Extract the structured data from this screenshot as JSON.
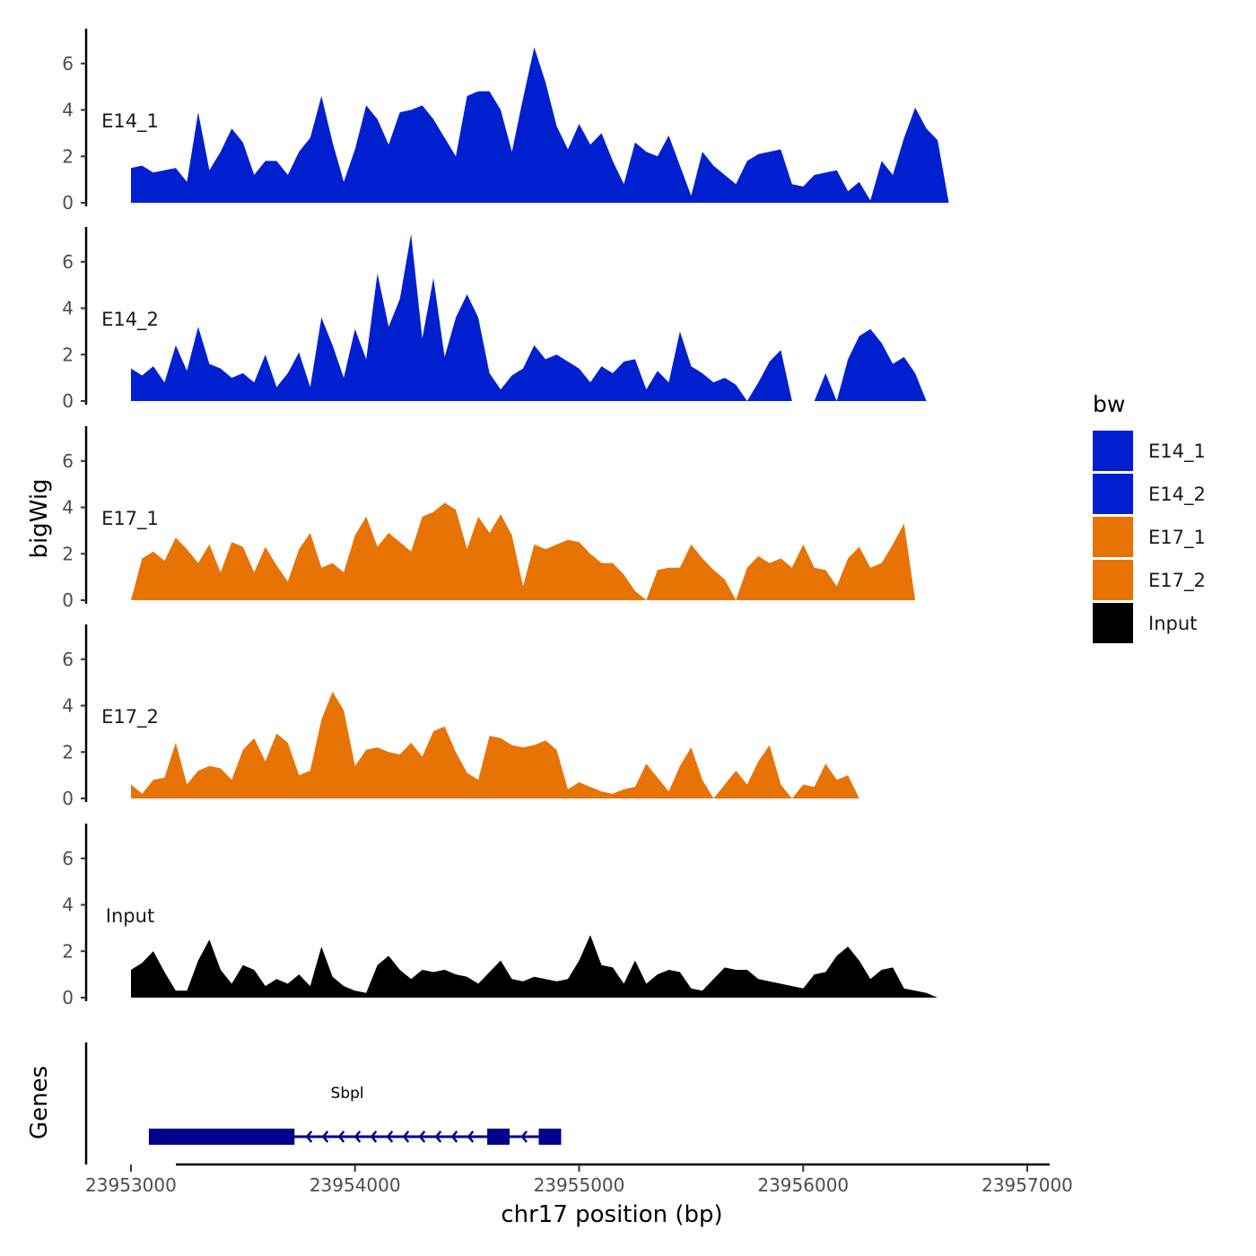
{
  "chart_data": {
    "type": "area",
    "chromosome": "chr17",
    "xlabel": "chr17 position (bp)",
    "ylabel": "bigWig",
    "genes_label": "Genes",
    "xlim": [
      23952800,
      23957100
    ],
    "x_ticks": [
      23953000,
      23954000,
      23955000,
      23956000,
      23957000
    ],
    "x_tick_labels": [
      "23953000",
      "23954000",
      "23955000",
      "23956000",
      "23957000"
    ],
    "ylim": [
      0,
      7.5
    ],
    "y_ticks": [
      0,
      2,
      4,
      6
    ],
    "y_tick_labels": [
      "0",
      "2",
      "4",
      "6"
    ],
    "legend": {
      "title": "bw",
      "entries": [
        {
          "label": "E14_1",
          "color": "#0020d0"
        },
        {
          "label": "E14_2",
          "color": "#0020d0"
        },
        {
          "label": "E17_1",
          "color": "#e87305"
        },
        {
          "label": "E17_2",
          "color": "#e87305"
        },
        {
          "label": "Input",
          "color": "#000000"
        }
      ]
    },
    "series": [
      {
        "name": "E14_1",
        "color": "#0020d0",
        "x": [
          23953000,
          23953050,
          23953100,
          23953150,
          23953200,
          23953250,
          23953300,
          23953350,
          23953400,
          23953450,
          23953500,
          23953550,
          23953600,
          23953650,
          23953700,
          23953750,
          23953800,
          23953850,
          23953900,
          23953950,
          23954000,
          23954050,
          23954100,
          23954150,
          23954200,
          23954250,
          23954300,
          23954350,
          23954400,
          23954450,
          23954500,
          23954550,
          23954600,
          23954650,
          23954700,
          23954750,
          23954800,
          23954850,
          23954900,
          23954950,
          23955000,
          23955050,
          23955100,
          23955150,
          23955200,
          23955250,
          23955300,
          23955350,
          23955400,
          23955450,
          23955500,
          23955550,
          23955600,
          23955650,
          23955700,
          23955750,
          23955800,
          23955850,
          23955900,
          23955950,
          23956000,
          23956050,
          23956100,
          23956150,
          23956200,
          23956250,
          23956300,
          23956350,
          23956400,
          23956450,
          23956500,
          23956550,
          23956600,
          23956650,
          23956700,
          23956750,
          23956800
        ],
        "y": [
          1.5,
          1.6,
          1.3,
          1.4,
          1.5,
          0.9,
          3.9,
          1.4,
          2.2,
          3.2,
          2.6,
          1.2,
          1.8,
          1.8,
          1.2,
          2.2,
          2.8,
          4.6,
          2.6,
          0.9,
          2.3,
          4.2,
          3.6,
          2.5,
          3.9,
          4.0,
          4.2,
          3.6,
          2.8,
          2.0,
          4.6,
          4.8,
          4.8,
          4.0,
          2.2,
          4.5,
          6.7,
          5.2,
          3.3,
          2.3,
          3.4,
          2.5,
          3.0,
          1.8,
          0.8,
          2.6,
          2.2,
          2.0,
          2.9,
          1.6,
          0.3,
          2.2,
          1.6,
          1.2,
          0.8,
          1.8,
          2.1,
          2.2,
          2.3,
          0.8,
          0.7,
          1.2,
          1.3,
          1.4,
          0.5,
          0.9,
          0.1,
          1.8,
          1.2,
          2.8,
          4.1,
          3.2,
          2.7,
          0.0,
          0.0,
          0.0,
          0.0
        ]
      },
      {
        "name": "E14_2",
        "color": "#0020d0",
        "x": [
          23953000,
          23953050,
          23953100,
          23953150,
          23953200,
          23953250,
          23953300,
          23953350,
          23953400,
          23953450,
          23953500,
          23953550,
          23953600,
          23953650,
          23953700,
          23953750,
          23953800,
          23953850,
          23953900,
          23953950,
          23954000,
          23954050,
          23954100,
          23954150,
          23954200,
          23954250,
          23954300,
          23954350,
          23954400,
          23954450,
          23954500,
          23954550,
          23954600,
          23954650,
          23954700,
          23954750,
          23954800,
          23954850,
          23954900,
          23954950,
          23955000,
          23955050,
          23955100,
          23955150,
          23955200,
          23955250,
          23955300,
          23955350,
          23955400,
          23955450,
          23955500,
          23955550,
          23955600,
          23955650,
          23955700,
          23955750,
          23955800,
          23955850,
          23955900,
          23955950,
          23956000,
          23956050,
          23956100,
          23956150,
          23956200,
          23956250,
          23956300,
          23956350,
          23956400,
          23956450,
          23956500,
          23956550,
          23956600,
          23956650,
          23956700,
          23956750,
          23956800
        ],
        "y": [
          1.4,
          1.1,
          1.5,
          0.8,
          2.4,
          1.3,
          3.2,
          1.6,
          1.4,
          1.0,
          1.2,
          0.8,
          2.0,
          0.6,
          1.2,
          2.1,
          0.6,
          3.6,
          2.4,
          1.0,
          3.1,
          1.8,
          5.5,
          3.2,
          4.4,
          7.2,
          2.7,
          5.3,
          1.9,
          3.6,
          4.6,
          3.6,
          1.2,
          0.5,
          1.1,
          1.4,
          2.4,
          1.8,
          2.0,
          1.7,
          1.4,
          0.8,
          1.5,
          1.2,
          1.7,
          1.8,
          0.5,
          1.3,
          0.8,
          3.0,
          1.5,
          1.2,
          0.8,
          1.0,
          0.7,
          0.0,
          0.8,
          1.7,
          2.2,
          0.0,
          0.0,
          0.0,
          1.2,
          0.0,
          1.8,
          2.8,
          3.1,
          2.5,
          1.6,
          1.9,
          1.2,
          0.0,
          0.0,
          0.0,
          0.0,
          0.0,
          0.0
        ]
      },
      {
        "name": "E17_1",
        "color": "#e87305",
        "x": [
          23953000,
          23953050,
          23953100,
          23953150,
          23953200,
          23953250,
          23953300,
          23953350,
          23953400,
          23953450,
          23953500,
          23953550,
          23953600,
          23953650,
          23953700,
          23953750,
          23953800,
          23953850,
          23953900,
          23953950,
          23954000,
          23954050,
          23954100,
          23954150,
          23954200,
          23954250,
          23954300,
          23954350,
          23954400,
          23954450,
          23954500,
          23954550,
          23954600,
          23954650,
          23954700,
          23954750,
          23954800,
          23954850,
          23954900,
          23954950,
          23955000,
          23955050,
          23955100,
          23955150,
          23955200,
          23955250,
          23955300,
          23955350,
          23955400,
          23955450,
          23955500,
          23955550,
          23955600,
          23955650,
          23955700,
          23955750,
          23955800,
          23955850,
          23955900,
          23955950,
          23956000,
          23956050,
          23956100,
          23956150,
          23956200,
          23956250,
          23956300,
          23956350,
          23956400,
          23956450,
          23956500,
          23956550,
          23956600,
          23956650,
          23956700,
          23956750,
          23956800
        ],
        "y": [
          0.0,
          1.8,
          2.1,
          1.7,
          2.7,
          2.2,
          1.6,
          2.4,
          1.2,
          2.5,
          2.3,
          1.2,
          2.3,
          1.5,
          0.8,
          2.2,
          2.9,
          1.4,
          1.6,
          1.2,
          2.8,
          3.6,
          2.3,
          2.9,
          2.5,
          2.1,
          3.6,
          3.8,
          4.2,
          3.9,
          2.2,
          3.6,
          2.9,
          3.7,
          2.8,
          0.6,
          2.4,
          2.2,
          2.4,
          2.6,
          2.5,
          2.0,
          1.6,
          1.6,
          1.1,
          0.4,
          0.0,
          1.3,
          1.4,
          1.4,
          2.4,
          1.8,
          1.3,
          0.9,
          0.0,
          1.4,
          1.9,
          1.6,
          1.8,
          1.4,
          2.4,
          1.4,
          1.3,
          0.6,
          1.8,
          2.3,
          1.4,
          1.6,
          2.4,
          3.3,
          0.0,
          0.0,
          0.0,
          0.0,
          0.0,
          0.0,
          0.0
        ]
      },
      {
        "name": "E17_2",
        "color": "#e87305",
        "x": [
          23953000,
          23953050,
          23953100,
          23953150,
          23953200,
          23953250,
          23953300,
          23953350,
          23953400,
          23953450,
          23953500,
          23953550,
          23953600,
          23953650,
          23953700,
          23953750,
          23953800,
          23953850,
          23953900,
          23953950,
          23954000,
          23954050,
          23954100,
          23954150,
          23954200,
          23954250,
          23954300,
          23954350,
          23954400,
          23954450,
          23954500,
          23954550,
          23954600,
          23954650,
          23954700,
          23954750,
          23954800,
          23954850,
          23954900,
          23954950,
          23955000,
          23955050,
          23955100,
          23955150,
          23955200,
          23955250,
          23955300,
          23955350,
          23955400,
          23955450,
          23955500,
          23955550,
          23955600,
          23955650,
          23955700,
          23955750,
          23955800,
          23955850,
          23955900,
          23955950,
          23956000,
          23956050,
          23956100,
          23956150,
          23956200,
          23956250,
          23956300,
          23956350,
          23956400,
          23956450,
          23956500,
          23956550,
          23956600,
          23956650,
          23956700,
          23956750,
          23956800
        ],
        "y": [
          0.6,
          0.2,
          0.8,
          0.9,
          2.4,
          0.6,
          1.2,
          1.4,
          1.3,
          0.8,
          2.1,
          2.6,
          1.6,
          2.8,
          2.4,
          1.0,
          1.2,
          3.4,
          4.6,
          3.8,
          1.4,
          2.1,
          2.2,
          2.0,
          1.9,
          2.4,
          1.8,
          2.9,
          3.1,
          2.0,
          1.1,
          0.8,
          2.7,
          2.6,
          2.3,
          2.2,
          2.3,
          2.5,
          2.1,
          0.4,
          0.7,
          0.5,
          0.3,
          0.2,
          0.4,
          0.5,
          1.5,
          0.9,
          0.3,
          1.4,
          2.2,
          0.8,
          0.0,
          0.6,
          1.2,
          0.6,
          1.6,
          2.3,
          0.6,
          0.0,
          0.6,
          0.5,
          1.5,
          0.8,
          1.0,
          0.0,
          0.0,
          0.0,
          0.0,
          0.0,
          0.0,
          0.0,
          0.0,
          0.0,
          0.0,
          0.0,
          0.0
        ]
      },
      {
        "name": "Input",
        "color": "#000000",
        "x": [
          23953000,
          23953050,
          23953100,
          23953150,
          23953200,
          23953250,
          23953300,
          23953350,
          23953400,
          23953450,
          23953500,
          23953550,
          23953600,
          23953650,
          23953700,
          23953750,
          23953800,
          23953850,
          23953900,
          23953950,
          23954000,
          23954050,
          23954100,
          23954150,
          23954200,
          23954250,
          23954300,
          23954350,
          23954400,
          23954450,
          23954500,
          23954550,
          23954600,
          23954650,
          23954700,
          23954750,
          23954800,
          23954850,
          23954900,
          23954950,
          23955000,
          23955050,
          23955100,
          23955150,
          23955200,
          23955250,
          23955300,
          23955350,
          23955400,
          23955450,
          23955500,
          23955550,
          23955600,
          23955650,
          23955700,
          23955750,
          23955800,
          23955850,
          23955900,
          23955950,
          23956000,
          23956050,
          23956100,
          23956150,
          23956200,
          23956250,
          23956300,
          23956350,
          23956400,
          23956450,
          23956500,
          23956550,
          23956600,
          23956650,
          23956700,
          23956750,
          23956800
        ],
        "y": [
          1.2,
          1.5,
          2.0,
          1.1,
          0.3,
          0.3,
          1.6,
          2.5,
          1.2,
          0.6,
          1.4,
          1.2,
          0.5,
          0.8,
          0.6,
          1.0,
          0.5,
          2.2,
          0.9,
          0.5,
          0.3,
          0.2,
          1.4,
          1.8,
          1.2,
          0.8,
          1.2,
          1.1,
          1.2,
          1.0,
          0.9,
          0.6,
          1.1,
          1.6,
          0.8,
          0.7,
          0.9,
          0.8,
          0.7,
          0.8,
          1.6,
          2.7,
          1.4,
          1.3,
          0.6,
          1.6,
          0.6,
          1.0,
          1.2,
          1.1,
          0.4,
          0.3,
          0.8,
          1.3,
          1.2,
          1.2,
          0.8,
          0.7,
          0.6,
          0.5,
          0.4,
          1.0,
          1.1,
          1.8,
          2.2,
          1.6,
          0.8,
          1.2,
          1.3,
          0.4,
          0.3,
          0.2,
          0.0,
          0.0,
          0.0,
          0.0,
          0.0
        ]
      }
    ],
    "genes": [
      {
        "name": "Sbpl",
        "start": 23953080,
        "end": 23954920,
        "strand": "-",
        "exons": [
          [
            23953080,
            23953730
          ],
          [
            23954590,
            23954690
          ],
          [
            23954820,
            23954920
          ]
        ]
      }
    ]
  }
}
